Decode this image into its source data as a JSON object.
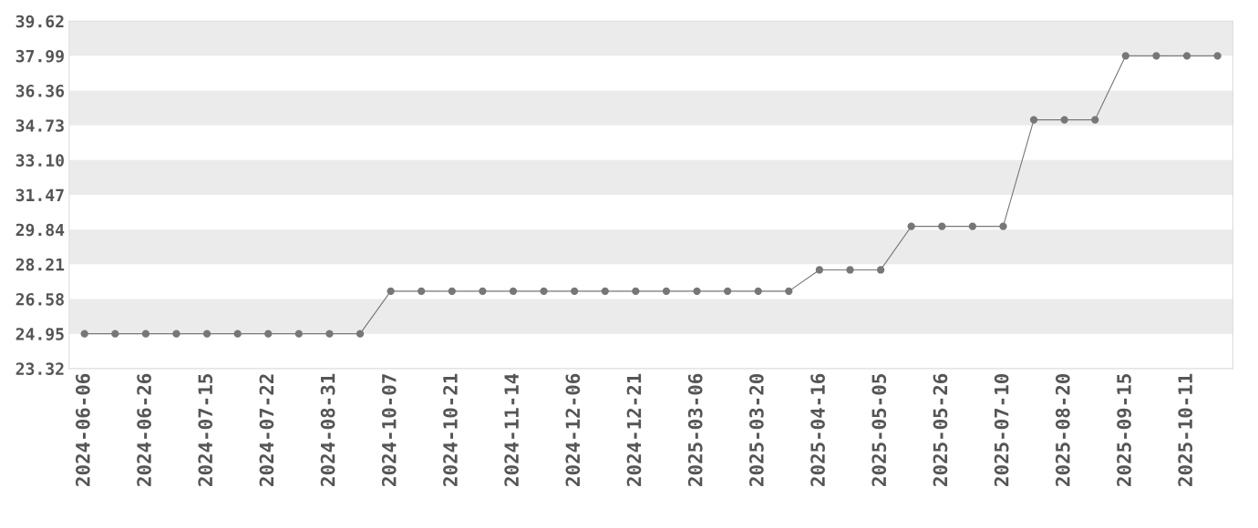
{
  "chart_data": {
    "type": "line",
    "categories": [
      "2024-06-06",
      null,
      "2024-06-26",
      null,
      "2024-07-15",
      null,
      "2024-07-22",
      null,
      "2024-08-31",
      null,
      "2024-10-07",
      null,
      "2024-10-21",
      null,
      "2024-11-14",
      null,
      "2024-12-06",
      null,
      "2024-12-21",
      null,
      "2025-03-06",
      null,
      "2025-03-20",
      null,
      "2025-04-16",
      null,
      "2025-05-05",
      null,
      "2025-05-26",
      null,
      "2025-07-10",
      null,
      "2025-08-20",
      null,
      "2025-09-15",
      null,
      "2025-10-11",
      null
    ],
    "series": [
      {
        "color": "#777777",
        "values": [
          24.95,
          24.95,
          24.95,
          24.95,
          24.95,
          24.95,
          24.95,
          24.95,
          24.95,
          24.95,
          26.95,
          26.95,
          26.95,
          26.95,
          26.95,
          26.95,
          26.95,
          26.95,
          26.95,
          26.95,
          26.95,
          26.95,
          26.95,
          26.95,
          27.95,
          27.95,
          27.95,
          29.99,
          29.99,
          29.99,
          29.99,
          34.99,
          34.99,
          34.99,
          37.99,
          37.99,
          37.99,
          37.99
        ]
      }
    ],
    "ylim": [
      23.32,
      39.62
    ],
    "yticks": [
      23.32,
      24.95,
      26.58,
      28.21,
      29.84,
      31.47,
      {
        "value": 33.1,
        "label": "33.10"
      },
      34.73,
      36.36,
      37.99,
      39.62
    ],
    "bands": [
      {
        "axis": "y",
        "from": 24.95,
        "to": 26.58,
        "color": "#ebebeb"
      },
      {
        "axis": "y",
        "from": 28.21,
        "to": 29.84,
        "color": "#ebebeb"
      },
      {
        "axis": "y",
        "from": 31.47,
        "to": 33.1,
        "color": "#ebebeb"
      },
      {
        "axis": "y",
        "from": 34.73,
        "to": 36.36,
        "color": "#ebebeb"
      },
      {
        "axis": "y",
        "from": 37.99,
        "to": 39.62,
        "color": "#ebebeb"
      }
    ],
    "marker": "circle",
    "line_style": "solid"
  }
}
